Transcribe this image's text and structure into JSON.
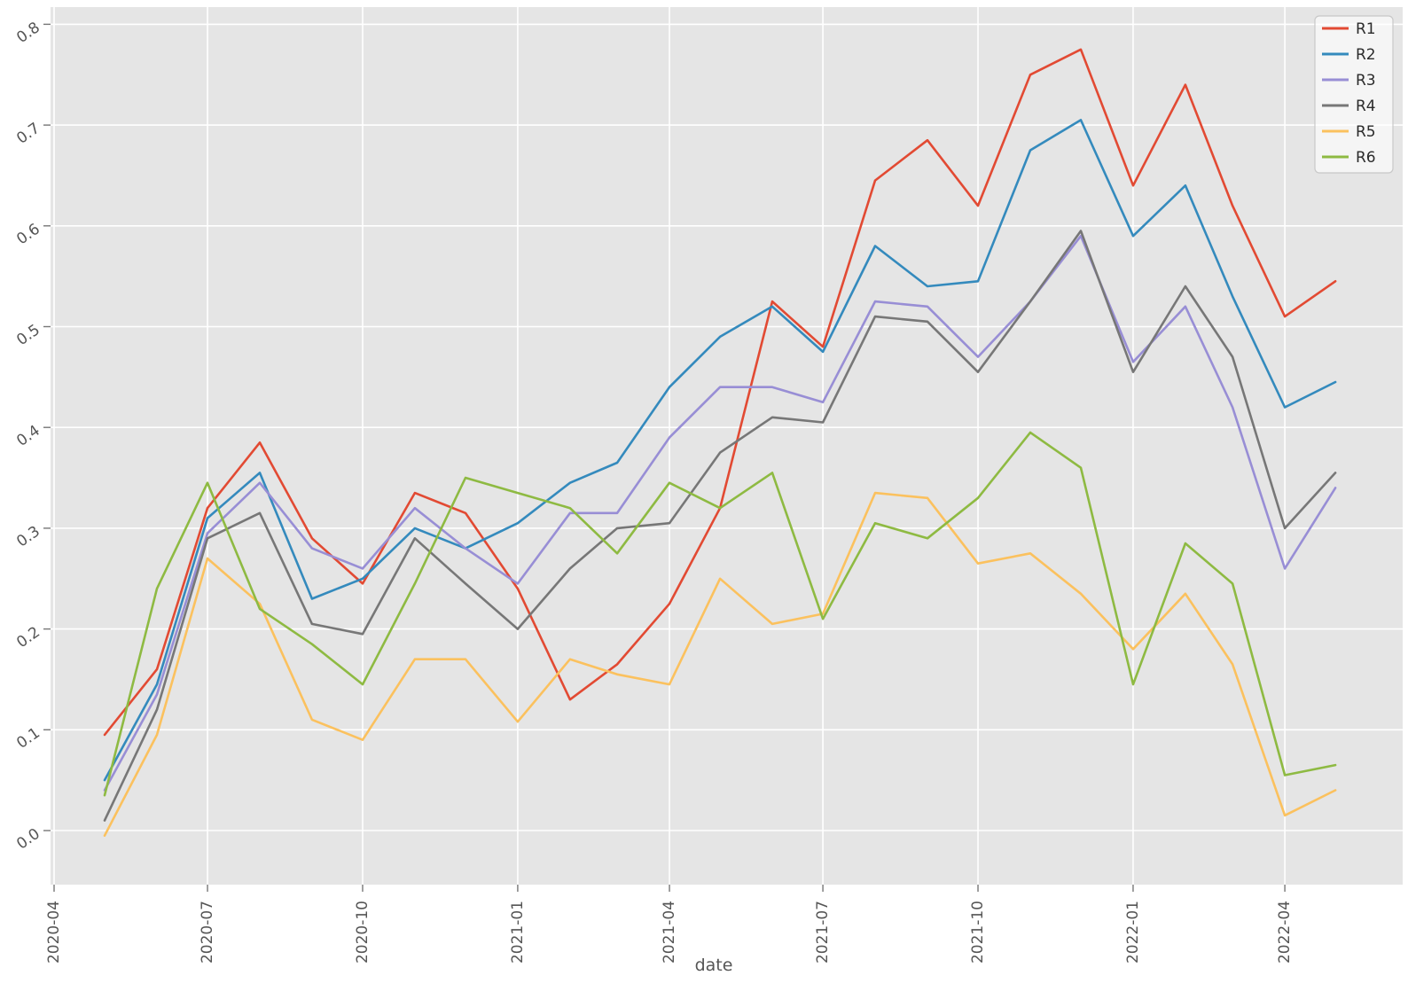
{
  "chart_data": {
    "type": "line",
    "title": "",
    "xlabel": "date",
    "ylabel": "",
    "grid": "on",
    "legend_position": "upper right",
    "x": [
      "2020-05",
      "2020-06",
      "2020-07",
      "2020-08",
      "2020-09",
      "2020-10",
      "2020-11",
      "2020-12",
      "2021-01",
      "2021-02",
      "2021-03",
      "2021-04",
      "2021-05",
      "2021-06",
      "2021-07",
      "2021-08",
      "2021-09",
      "2021-10",
      "2021-11",
      "2021-12",
      "2022-01",
      "2022-02",
      "2022-03",
      "2022-04",
      "2022-05"
    ],
    "x_tick_labels": [
      "2020-04",
      "2020-07",
      "2020-10",
      "2021-01",
      "2021-04",
      "2021-07",
      "2021-10",
      "2022-01",
      "2022-04"
    ],
    "y_ticks": [
      0.0,
      0.1,
      0.2,
      0.3,
      0.4,
      0.5,
      0.6,
      0.7,
      0.8
    ],
    "ylim": [
      -0.054,
      0.817
    ],
    "series": [
      {
        "name": "R1",
        "color": "#E24A33",
        "values": [
          0.095,
          0.16,
          0.32,
          0.385,
          0.29,
          0.245,
          0.335,
          0.315,
          0.24,
          0.13,
          0.165,
          0.225,
          0.32,
          0.525,
          0.48,
          0.645,
          0.685,
          0.62,
          0.75,
          0.775,
          0.64,
          0.74,
          0.62,
          0.51,
          0.545
        ]
      },
      {
        "name": "R2",
        "color": "#348ABD",
        "values": [
          0.05,
          0.145,
          0.31,
          0.355,
          0.23,
          0.25,
          0.3,
          0.28,
          0.305,
          0.345,
          0.365,
          0.44,
          0.49,
          0.52,
          0.475,
          0.58,
          0.54,
          0.545,
          0.675,
          0.705,
          0.59,
          0.64,
          0.53,
          0.42,
          0.445
        ]
      },
      {
        "name": "R3",
        "color": "#988ED5",
        "values": [
          0.04,
          0.135,
          0.295,
          0.345,
          0.28,
          0.26,
          0.32,
          0.28,
          0.245,
          0.315,
          0.315,
          0.39,
          0.44,
          0.44,
          0.425,
          0.525,
          0.52,
          0.47,
          0.525,
          0.59,
          0.465,
          0.52,
          0.42,
          0.26,
          0.34
        ]
      },
      {
        "name": "R4",
        "color": "#777777",
        "values": [
          0.01,
          0.12,
          0.29,
          0.315,
          0.205,
          0.195,
          0.29,
          0.245,
          0.2,
          0.26,
          0.3,
          0.305,
          0.375,
          0.41,
          0.405,
          0.51,
          0.505,
          0.455,
          0.525,
          0.595,
          0.455,
          0.54,
          0.47,
          0.3,
          0.355
        ]
      },
      {
        "name": "R5",
        "color": "#FBC15E",
        "values": [
          -0.005,
          0.095,
          0.27,
          0.225,
          0.11,
          0.09,
          0.17,
          0.17,
          0.108,
          0.17,
          0.155,
          0.145,
          0.25,
          0.205,
          0.215,
          0.335,
          0.33,
          0.265,
          0.275,
          0.235,
          0.18,
          0.235,
          0.165,
          0.015,
          0.04
        ]
      },
      {
        "name": "R6",
        "color": "#8EBA42",
        "values": [
          0.035,
          0.24,
          0.345,
          0.22,
          0.185,
          0.145,
          0.245,
          0.35,
          0.335,
          0.32,
          0.275,
          0.345,
          0.32,
          0.355,
          0.21,
          0.305,
          0.29,
          0.33,
          0.395,
          0.36,
          0.145,
          0.285,
          0.245,
          0.055,
          0.065
        ]
      }
    ],
    "colors": {
      "axes_background": "#E5E5E5",
      "gridline": "#FFFFFF",
      "tick_label": "#555555",
      "axis_label": "#555555",
      "legend_text": "#2B2B2B",
      "legend_border": "#C8C8C8"
    }
  }
}
